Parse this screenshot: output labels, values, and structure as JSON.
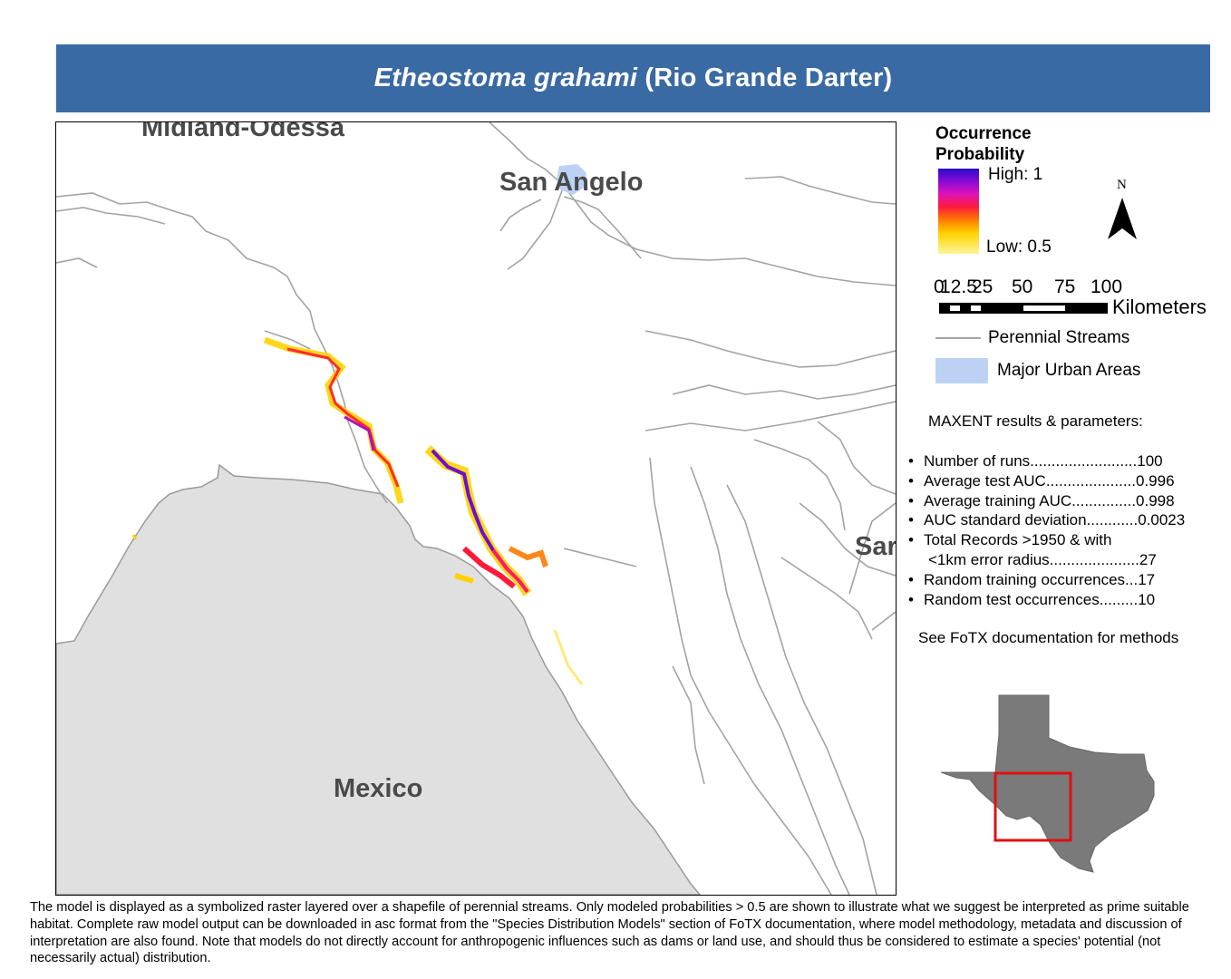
{
  "title": {
    "scientific_name": "Etheostoma grahami",
    "common_name": "(Rio Grande Darter)"
  },
  "map": {
    "place_labels": {
      "midland_odessa": "Midland-Odessa",
      "san_angelo": "San Angelo",
      "mexico": "Mexico",
      "san_antonio_partial": "Sar"
    },
    "colors": {
      "mexico_fill": "#e0e0e0",
      "stream_color": "#a3a3a3",
      "urban_fill": "#bcd2f5",
      "prob_high": "#2b0ac8",
      "prob_mid": "#ff1a3a",
      "prob_low": "#fff59a"
    }
  },
  "legend": {
    "title": "Occurrence Probability",
    "high_label": "High: 1",
    "low_label": "Low: 0.5",
    "north_label": "N",
    "scale_ticks": [
      "0",
      "12.5",
      "25",
      "50",
      "75",
      "100"
    ],
    "scale_unit": "Kilometers",
    "streams_label": "Perennial Streams",
    "urban_label": "Major Urban Areas"
  },
  "results": {
    "title": "MAXENT results & parameters:",
    "items": [
      "Number of runs.........................100",
      "Average test AUC.....................0.996",
      "Average training AUC...............0.998",
      "AUC standard deviation............0.0023",
      "Total Records >1950 & with",
      "Random training occurrences...17",
      "Random test occurrences.........10"
    ],
    "total_records_cont": "<1km error radius.....................27",
    "methods_note": "See FoTX documentation for methods"
  },
  "inset": {
    "state_fill": "#7a7a7a",
    "extent_color": "#e01010"
  },
  "footnote": "The model is displayed as a symbolized raster layered over a shapefile of perennial streams. Only modeled probabilities > 0.5 are shown to illustrate what we suggest be interpreted as prime suitable habitat. Complete raw model output can be downloaded in asc format from the \"Species Distribution Models\" section of FoTX documentation, where model methodology, metadata and discussion of interpretation are also found. Note that models do not directly account for anthropogenic influences such as dams or land use, and should thus be considered to estimate a species' potential (not necessarily actual) distribution."
}
